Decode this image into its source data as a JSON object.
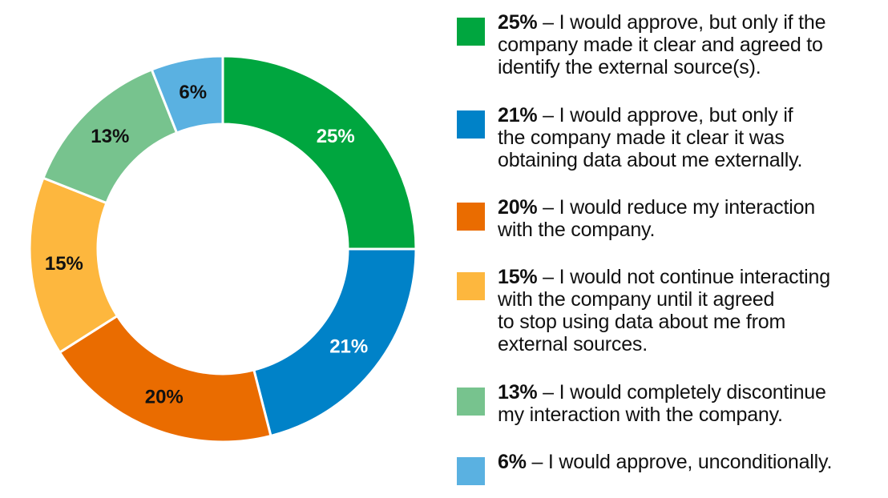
{
  "chart_data": {
    "type": "pie",
    "categories": [
      "I would approve, but only if the company made it clear and agreed to identify the external source(s).",
      "I would approve, but only if the company made it clear it was obtaining data about me externally.",
      "I would reduce my interaction with the company.",
      "I would not continue interacting with the company until it agreed to stop using data about me from external sources.",
      "I would completely discontinue my interaction with the company.",
      "I would approve, unconditionally."
    ],
    "values": [
      25,
      21,
      20,
      15,
      13,
      6
    ],
    "colors": [
      "#00a63f",
      "#0082c8",
      "#ea6c00",
      "#fdb73e",
      "#77c38e",
      "#5ab1e1"
    ],
    "label_colors": [
      "#ffffff",
      "#ffffff",
      "#111111",
      "#111111",
      "#111111",
      "#111111"
    ],
    "slice_labels": [
      "25%",
      "21%",
      "20%",
      "15%",
      "13%",
      "6%"
    ],
    "legend": [
      {
        "pct": "25%",
        "lines": [
          "– I would approve, but only if the",
          "company made it clear and agreed to",
          "identify the external source(s)."
        ]
      },
      {
        "pct": "21%",
        "lines": [
          "– I would approve, but only if",
          "the company made it clear it was",
          "obtaining data about me externally."
        ]
      },
      {
        "pct": "20%",
        "lines": [
          "– I would reduce my interaction",
          "with the company."
        ]
      },
      {
        "pct": "15%",
        "lines": [
          "– I would not continue interacting",
          "with the company until it agreed",
          "to stop using data about me from",
          "external sources."
        ]
      },
      {
        "pct": "13%",
        "lines": [
          "– I would completely discontinue",
          "my interaction with the company."
        ]
      },
      {
        "pct": "6%",
        "lines": [
          "– I would approve, unconditionally."
        ]
      }
    ],
    "legend_placement": "right",
    "style": "donut"
  }
}
